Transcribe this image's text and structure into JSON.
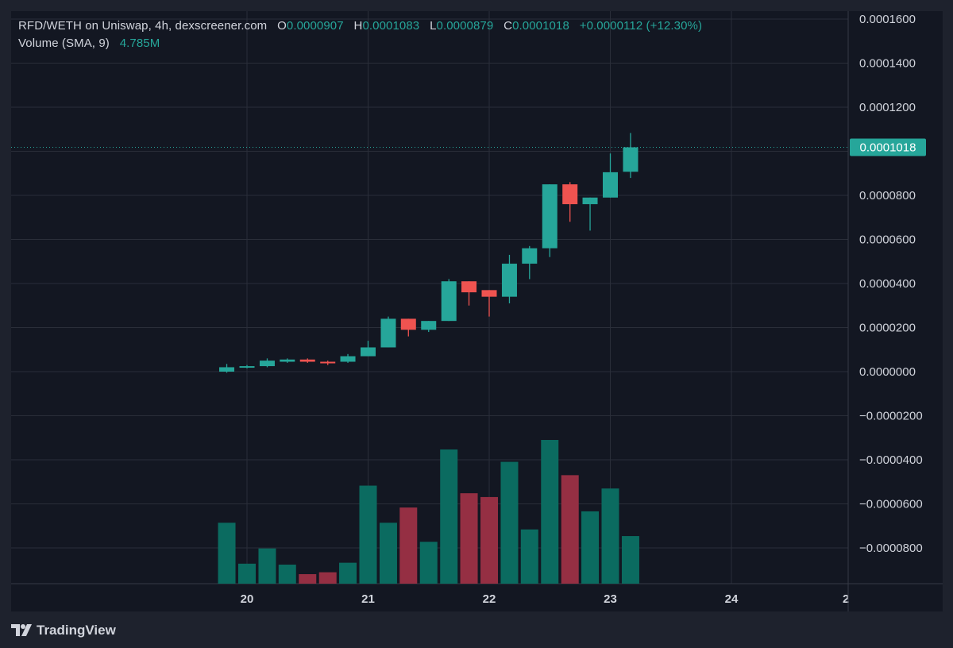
{
  "header": {
    "symbol": "RFD/WETH on Uniswap, 4h, dexscreener.com",
    "open_label": "O",
    "open_value": "0.0000907",
    "high_label": "H",
    "high_value": "0.0001083",
    "low_label": "L",
    "low_value": "0.0000879",
    "close_label": "C",
    "close_value": "0.0001018",
    "change": "+0.0000112 (+12.30%)",
    "volume_label": "Volume (SMA, 9)",
    "volume_value": "4.785M"
  },
  "price_badge": "0.0001018",
  "brand": {
    "name": "TradingView",
    "icon": "tradingview-logo-icon"
  },
  "colors": {
    "background": "#131722",
    "frame": "#1e222d",
    "grid": "#2a2e39",
    "up": "#26a69a",
    "down": "#ef5350",
    "volume_up": "#0b6b60",
    "volume_down": "#952f43",
    "text": "#d1d4dc"
  },
  "chart_data": {
    "type": "candlestick",
    "title": "RFD/WETH on Uniswap, 4h, dexscreener.com",
    "x_tick_labels": [
      "20",
      "21",
      "22",
      "23",
      "24",
      "2"
    ],
    "y_tick_labels": [
      "0.0001600",
      "0.0001400",
      "0.0001200",
      "0.0001000",
      "0.0000800",
      "0.0000600",
      "0.0000400",
      "0.0000200",
      "0.0000000",
      "−0.0000200",
      "−0.0000400",
      "−0.0000600",
      "−0.0000800"
    ],
    "ylim": [
      -9.7e-05,
      0.000163
    ],
    "grid": true,
    "last_price": 0.0001018,
    "candles": [
      {
        "t": 19.833,
        "o": 0.0,
        "h": 3.5e-06,
        "l": -5e-07,
        "c": 2e-06,
        "v": 0.64
      },
      {
        "t": 20.0,
        "o": 2e-06,
        "h": 3e-06,
        "l": 1.5e-06,
        "c": 2.5e-06,
        "v": 0.21
      },
      {
        "t": 20.167,
        "o": 2.5e-06,
        "h": 6e-06,
        "l": 2e-06,
        "c": 5e-06,
        "v": 0.37
      },
      {
        "t": 20.333,
        "o": 4.5e-06,
        "h": 6e-06,
        "l": 4e-06,
        "c": 5.5e-06,
        "v": 0.2
      },
      {
        "t": 20.5,
        "o": 5.5e-06,
        "h": 6e-06,
        "l": 4e-06,
        "c": 4.5e-06,
        "v": 0.1
      },
      {
        "t": 20.667,
        "o": 4.5e-06,
        "h": 5e-06,
        "l": 3e-06,
        "c": 4e-06,
        "v": 0.12
      },
      {
        "t": 20.833,
        "o": 4.5e-06,
        "h": 8e-06,
        "l": 4e-06,
        "c": 7e-06,
        "v": 0.22
      },
      {
        "t": 21.0,
        "o": 7e-06,
        "h": 1.4e-05,
        "l": 7e-06,
        "c": 1.1e-05,
        "v": 1.03
      },
      {
        "t": 21.167,
        "o": 1.1e-05,
        "h": 2.5e-05,
        "l": 1.1e-05,
        "c": 2.4e-05,
        "v": 0.64
      },
      {
        "t": 21.333,
        "o": 2.4e-05,
        "h": 2.4e-05,
        "l": 1.6e-05,
        "c": 1.9e-05,
        "v": 0.8
      },
      {
        "t": 21.5,
        "o": 1.9e-05,
        "h": 2.3e-05,
        "l": 1.8e-05,
        "c": 2.3e-05,
        "v": 0.44
      },
      {
        "t": 21.667,
        "o": 2.3e-05,
        "h": 4.2e-05,
        "l": 2.3e-05,
        "c": 4.1e-05,
        "v": 1.41
      },
      {
        "t": 21.833,
        "o": 4.1e-05,
        "h": 4.1e-05,
        "l": 3e-05,
        "c": 3.6e-05,
        "v": 0.95
      },
      {
        "t": 22.0,
        "o": 3.7e-05,
        "h": 3.7e-05,
        "l": 2.5e-05,
        "c": 3.4e-05,
        "v": 0.91
      },
      {
        "t": 22.167,
        "o": 3.4e-05,
        "h": 5.3e-05,
        "l": 3.1e-05,
        "c": 4.9e-05,
        "v": 1.28
      },
      {
        "t": 22.333,
        "o": 4.9e-05,
        "h": 5.7e-05,
        "l": 4.2e-05,
        "c": 5.6e-05,
        "v": 0.57
      },
      {
        "t": 22.5,
        "o": 5.6e-05,
        "h": 8.5e-05,
        "l": 5.2e-05,
        "c": 8.5e-05,
        "v": 1.51
      },
      {
        "t": 22.667,
        "o": 8.5e-05,
        "h": 8.6e-05,
        "l": 6.8e-05,
        "c": 7.6e-05,
        "v": 1.14
      },
      {
        "t": 22.833,
        "o": 7.6e-05,
        "h": 7.9e-05,
        "l": 6.4e-05,
        "c": 7.9e-05,
        "v": 0.76
      },
      {
        "t": 23.0,
        "o": 7.9e-05,
        "h": 9.9e-05,
        "l": 7.9e-05,
        "c": 9.05e-05,
        "v": 1.0
      },
      {
        "t": 23.167,
        "o": 9.07e-05,
        "h": 0.0001083,
        "l": 8.79e-05,
        "c": 0.0001018,
        "v": 0.5
      }
    ]
  }
}
